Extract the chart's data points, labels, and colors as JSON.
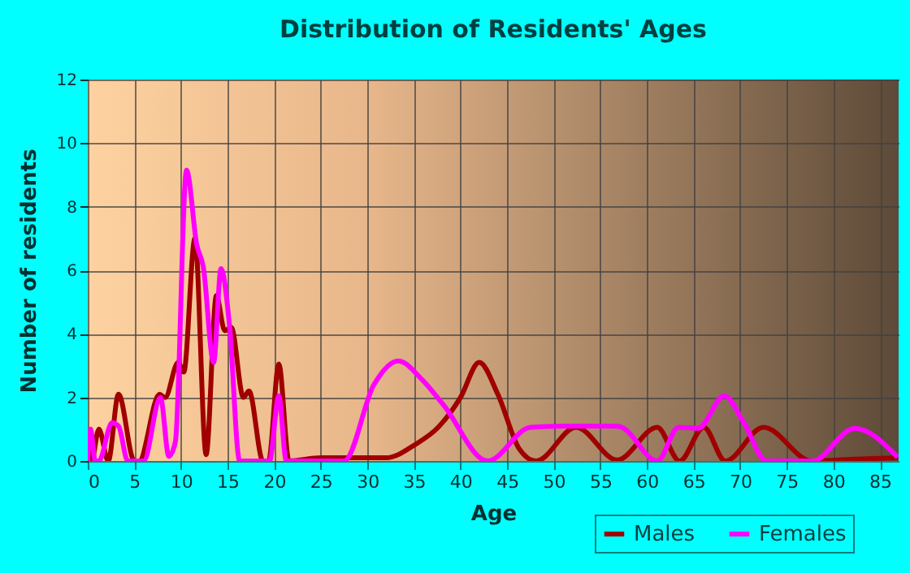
{
  "chart_data": {
    "type": "line",
    "title": "Distribution of Residents' Ages",
    "xlabel": "Age",
    "ylabel": "Number of residents",
    "xlim": [
      0,
      87
    ],
    "xticks": [
      0,
      5,
      10,
      15,
      20,
      25,
      30,
      35,
      40,
      45,
      50,
      55,
      60,
      65,
      70,
      75,
      80,
      85
    ],
    "ylim": [
      0,
      12
    ],
    "yticks": [
      0,
      2,
      4,
      6,
      8,
      10,
      12
    ],
    "grid": true,
    "legend": "bottom",
    "marker": "none",
    "line_style": "solid",
    "series": [
      {
        "name": "Males",
        "color": "#a00000",
        "x": [
          0,
          0.4,
          1.2,
          2.2,
          3.3,
          5,
          5.5,
          7.7,
          8.3,
          9.7,
          10.3,
          11.5,
          12.7,
          13.8,
          14.7,
          15.4,
          16.7,
          17.3,
          18.8,
          19.4,
          20.5,
          21.6,
          25,
          30,
          32,
          35.3,
          37.6,
          40,
          42,
          44,
          46.3,
          48.1,
          52.4,
          56.8,
          61.1,
          63.5,
          66.1,
          68.4,
          72.5,
          77.7,
          81.7,
          86.9
        ],
        "values": [
          1,
          0,
          1,
          0,
          2.1,
          0,
          0,
          2.1,
          2,
          3.1,
          2.8,
          7,
          0.2,
          5.2,
          4.1,
          4.2,
          2,
          2.2,
          0,
          0,
          3.05,
          0,
          0.1,
          0.1,
          0.1,
          0.55,
          1.06,
          2,
          3.1,
          2.1,
          0.38,
          0,
          1.06,
          0.03,
          1.06,
          0,
          1.06,
          0,
          1.06,
          0,
          0.05,
          0.1
        ]
      },
      {
        "name": "Females",
        "color": "#ff00ff",
        "x": [
          0,
          0.3,
          0.8,
          1.2,
          2.6,
          3.3,
          4.3,
          6,
          7.8,
          8.7,
          9.4,
          10.6,
          11.7,
          12.4,
          13.5,
          14.3,
          15.2,
          16.3,
          19.5,
          20.5,
          21.3,
          27.5,
          30.7,
          33.3,
          35.9,
          38.2,
          42.9,
          47.5,
          51,
          56.8,
          57.3,
          61.1,
          63.4,
          65.5,
          68.3,
          70.4,
          72.8,
          77.7,
          82.3,
          86.9
        ],
        "values": [
          0,
          1,
          0,
          0,
          1.2,
          1.1,
          0,
          0,
          2,
          0.15,
          0.6,
          9.15,
          6.8,
          6.1,
          3.1,
          6.05,
          4.3,
          0,
          0,
          2.05,
          0,
          0,
          2.4,
          3.15,
          2.55,
          1.75,
          0,
          1.06,
          1.1,
          1.1,
          1.06,
          0,
          1.06,
          1.03,
          2.05,
          1.2,
          0,
          0,
          1.03,
          0.12
        ]
      }
    ]
  }
}
